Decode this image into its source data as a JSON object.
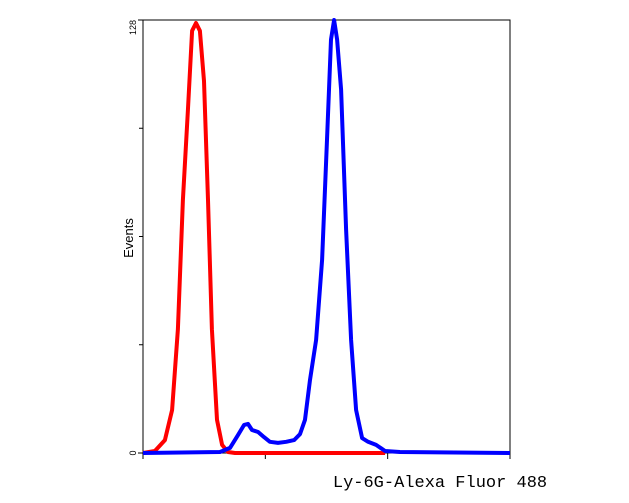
{
  "chart_data": {
    "type": "line",
    "x_label": "Ly-6G-Alexa Fluor 488",
    "y_label": "Events",
    "x_log": true,
    "xlim": [
      1,
      1000
    ],
    "xticks": [
      1,
      10,
      100,
      1000
    ],
    "ylim": [
      0,
      128
    ],
    "yticks": [
      0,
      128
    ],
    "y_minor_ticks": [
      32,
      64,
      96
    ],
    "series": [
      {
        "color": "#ff0000",
        "x": [
          1,
          1.25,
          1.51,
          1.73,
          1.93,
          2.12,
          2.33,
          2.52,
          2.71,
          2.92,
          3.15,
          3.4,
          3.66,
          4.03,
          4.43,
          4.95,
          5.65,
          95.2
        ],
        "values": [
          0,
          0.6,
          3.8,
          12.7,
          36.6,
          74.8,
          101.3,
          124.8,
          127.1,
          124.8,
          110,
          74.8,
          36.6,
          9.8,
          2.4,
          0.3,
          0,
          0
        ]
      },
      {
        "color": "#0000ff",
        "x": [
          1,
          4.26,
          5.14,
          5.98,
          6.7,
          7.22,
          7.78,
          8.72,
          9.75,
          10.9,
          12.7,
          14.8,
          17.2,
          19.2,
          21.1,
          23.2,
          26,
          29.1,
          31.9,
          34.4,
          36.5,
          38.6,
          41.6,
          45.7,
          50.2,
          55.2,
          61.8,
          69.2,
          80.4,
          95.2,
          126,
          1000
        ],
        "values": [
          0,
          0.3,
          1.5,
          5.3,
          8.3,
          8.6,
          6.8,
          6.2,
          4.7,
          3.3,
          3,
          3.3,
          3.8,
          5.6,
          9.8,
          21.6,
          33.4,
          57.1,
          92.6,
          122.2,
          128,
          122.2,
          107.4,
          66,
          33.4,
          12.7,
          4.4,
          3.3,
          2.4,
          0.6,
          0.3,
          0
        ]
      }
    ]
  }
}
